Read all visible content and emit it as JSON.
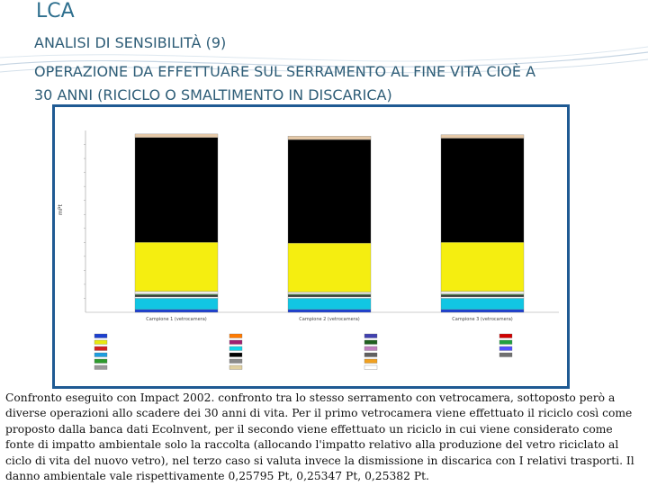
{
  "header": {
    "title": "LCA",
    "subtitle": "ANALISI DI SENSIBILITÀ (9)",
    "line1": "OPERAZIONE DA EFFETTUARE SUL SERRAMENTO AL FINE VITA CIOÈ A",
    "line2": "30 ANNI (RICICLO O SMALTIMENTO IN DISCARICA)"
  },
  "chart_data": {
    "type": "bar",
    "stacked": true,
    "ylabel": "mPt",
    "ylim": [
      0,
      260
    ],
    "categories": [
      "Campione 1 (vetrocamera)",
      "Campione 2 (vetrocamera)",
      "Campione 3 (vetrocamera)"
    ],
    "series": [
      {
        "color": "#1c3fd0",
        "values": [
          4,
          4,
          4
        ]
      },
      {
        "color": "#11c6e3",
        "values": [
          16,
          16,
          16
        ]
      },
      {
        "color": "#ffffff",
        "values": [
          2,
          2,
          2
        ]
      },
      {
        "color": "#3a3a3a",
        "values": [
          3,
          3,
          3
        ]
      },
      {
        "color": "#2d9b2d",
        "values": [
          1,
          1,
          1
        ]
      },
      {
        "color": "#ececec",
        "values": [
          4,
          3,
          4
        ]
      },
      {
        "color": "#f5ee10",
        "values": [
          70,
          70,
          70
        ]
      },
      {
        "color": "#000000",
        "values": [
          150,
          148,
          149
        ]
      },
      {
        "color": "#e5c9a8",
        "values": [
          5,
          5,
          5
        ]
      }
    ],
    "legend_colors": [
      "#1c3fd0",
      "#e8e810",
      "#d41f1f",
      "#1d9ee0",
      "#2d9b2d",
      "#9a9a9a",
      "#ff7a00",
      "#a02070",
      "#15d4e8",
      "#000000",
      "#8a8a8a",
      "#e0d0a0",
      "#4040b0",
      "#206020",
      "#c080c0",
      "#606060",
      "#f0a020",
      "#ffffff",
      "#d00000",
      "#20a040",
      "#5050ff",
      "#707070"
    ]
  },
  "caption": "Confronto eseguito con Impact 2002. confronto tra lo stesso serramento con vetrocamera, sottoposto però a diverse operazioni allo scadere dei 30 anni di vita. Per il primo vetrocamera viene effettuato il riciclo così come proposto dalla banca dati Ecolnvent, per il secondo viene effettuato un riciclo in cui viene considerato come fonte di impatto ambientale solo la raccolta (allocando l'impatto relativo alla produzione del vetro riciclato al ciclo di vita del nuovo vetro), nel terzo caso si valuta invece la dismissione in discarica con I relativi trasporti. Il danno ambientale vale rispettivamente 0,25795 Pt,  0,25347 Pt, 0,25382 Pt."
}
